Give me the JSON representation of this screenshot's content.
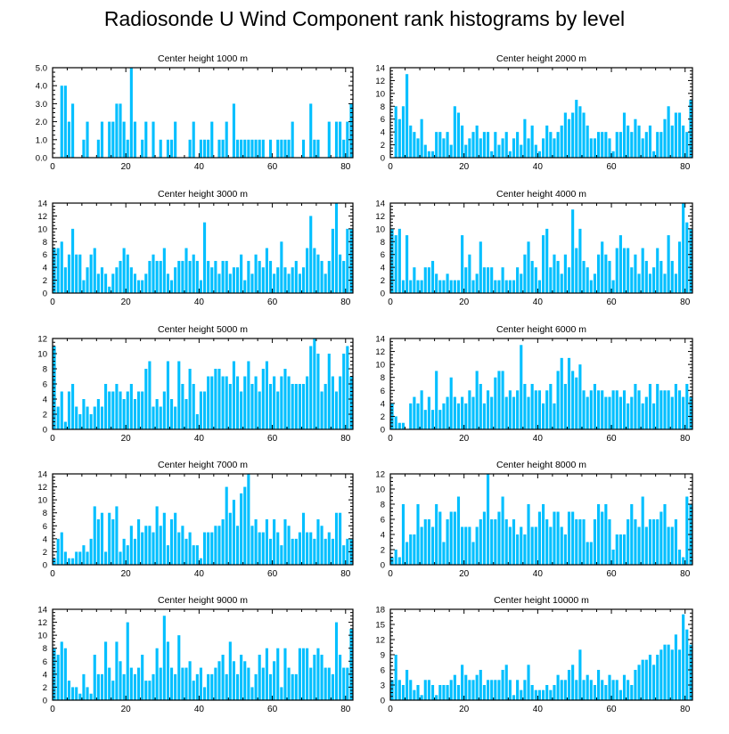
{
  "title": "Radiosonde U Wind Component rank histograms by level",
  "style": {
    "bar_color": "#00bfff",
    "axis_color": "#000000"
  },
  "chart_data": [
    {
      "type": "bar",
      "title": "Center height 1000 m",
      "xlim": [
        0,
        82
      ],
      "ylim": [
        0,
        5
      ],
      "xticks": [
        0,
        20,
        40,
        60,
        80
      ],
      "yticks": [
        0,
        1,
        2,
        3,
        4,
        5
      ],
      "ytick_labels": [
        "0.0",
        "1.0",
        "2.0",
        "3.0",
        "4.0",
        "5.0"
      ],
      "values": [
        0,
        0,
        4,
        4,
        2,
        3,
        0,
        0,
        1,
        2,
        0,
        0,
        1,
        2,
        0,
        2,
        2,
        3,
        3,
        2,
        1,
        5,
        2,
        0,
        1,
        2,
        0,
        2,
        0,
        1,
        0,
        1,
        1,
        2,
        0,
        0,
        0,
        1,
        2,
        0,
        1,
        1,
        1,
        2,
        0,
        1,
        1,
        2,
        0,
        3,
        1,
        1,
        1,
        1,
        1,
        1,
        1,
        1,
        0,
        1,
        0,
        1,
        1,
        1,
        1,
        2,
        0,
        0,
        1,
        0,
        3,
        1,
        1,
        0,
        0,
        2,
        0,
        2,
        2,
        1,
        2,
        3
      ]
    },
    {
      "type": "bar",
      "title": "Center height 2000 m",
      "xlim": [
        0,
        82
      ],
      "ylim": [
        0,
        14
      ],
      "xticks": [
        0,
        20,
        40,
        60,
        80
      ],
      "yticks": [
        0,
        2,
        4,
        6,
        8,
        10,
        12,
        14
      ],
      "values": [
        0,
        8,
        6,
        8,
        13,
        5,
        4,
        3,
        6,
        2,
        1,
        1,
        4,
        4,
        3,
        4,
        2,
        8,
        7,
        5,
        2,
        3,
        4,
        5,
        3,
        4,
        4,
        1,
        4,
        2,
        3,
        4,
        1,
        3,
        4,
        2,
        6,
        3,
        5,
        2,
        1,
        3,
        5,
        4,
        3,
        4,
        5,
        7,
        6,
        7,
        9,
        8,
        7,
        5,
        3,
        3,
        4,
        4,
        4,
        3,
        1,
        4,
        4,
        7,
        5,
        4,
        6,
        5,
        3,
        4,
        5,
        1,
        4,
        4,
        6,
        8,
        5,
        7,
        7,
        5,
        4,
        9
      ]
    },
    {
      "type": "bar",
      "title": "Center height 3000 m",
      "xlim": [
        0,
        82
      ],
      "ylim": [
        0,
        14
      ],
      "xticks": [
        0,
        20,
        40,
        60,
        80
      ],
      "yticks": [
        0,
        2,
        4,
        6,
        8,
        10,
        12,
        14
      ],
      "values": [
        7,
        7,
        8,
        4,
        6,
        10,
        6,
        6,
        2,
        4,
        6,
        7,
        3,
        4,
        3,
        1,
        3,
        4,
        5,
        7,
        6,
        4,
        3,
        2,
        2,
        3,
        5,
        6,
        5,
        5,
        7,
        3,
        2,
        4,
        5,
        5,
        7,
        5,
        6,
        5,
        2,
        11,
        5,
        4,
        5,
        3,
        5,
        5,
        3,
        4,
        4,
        6,
        2,
        5,
        3,
        6,
        5,
        4,
        7,
        5,
        3,
        4,
        8,
        4,
        3,
        4,
        5,
        3,
        4,
        7,
        12,
        7,
        6,
        5,
        3,
        5,
        10,
        14,
        6,
        5,
        10,
        10
      ]
    },
    {
      "type": "bar",
      "title": "Center height 4000 m",
      "xlim": [
        0,
        82
      ],
      "ylim": [
        0,
        14
      ],
      "xticks": [
        0,
        20,
        40,
        60,
        80
      ],
      "yticks": [
        0,
        2,
        4,
        6,
        8,
        10,
        12,
        14
      ],
      "values": [
        10,
        9,
        10,
        2,
        9,
        2,
        4,
        2,
        2,
        4,
        4,
        5,
        3,
        2,
        2,
        3,
        2,
        2,
        2,
        9,
        4,
        6,
        2,
        3,
        8,
        4,
        4,
        4,
        2,
        2,
        4,
        2,
        2,
        2,
        4,
        3,
        6,
        8,
        5,
        4,
        2,
        9,
        10,
        4,
        6,
        5,
        3,
        6,
        4,
        13,
        7,
        10,
        5,
        4,
        2,
        3,
        6,
        8,
        6,
        5,
        2,
        7,
        9,
        7,
        7,
        4,
        6,
        3,
        7,
        5,
        3,
        4,
        7,
        5,
        3,
        9,
        5,
        3,
        8,
        14,
        11,
        10
      ]
    },
    {
      "type": "bar",
      "title": "Center height 5000 m",
      "xlim": [
        0,
        82
      ],
      "ylim": [
        0,
        12
      ],
      "xticks": [
        0,
        20,
        40,
        60,
        80
      ],
      "yticks": [
        0,
        2,
        4,
        6,
        8,
        10,
        12
      ],
      "values": [
        11,
        3,
        5,
        1,
        5,
        6,
        3,
        2,
        4,
        3,
        2,
        3,
        4,
        3,
        6,
        5,
        5,
        6,
        5,
        4,
        5,
        6,
        4,
        5,
        5,
        8,
        9,
        3,
        4,
        3,
        5,
        9,
        4,
        3,
        9,
        6,
        4,
        8,
        6,
        2,
        5,
        5,
        7,
        7,
        8,
        8,
        7,
        7,
        6,
        9,
        7,
        5,
        7,
        9,
        6,
        7,
        5,
        8,
        9,
        6,
        7,
        5,
        7,
        8,
        7,
        6,
        6,
        6,
        6,
        7,
        11,
        12,
        10,
        5,
        6,
        10,
        7,
        5,
        7,
        10,
        11,
        7
      ]
    },
    {
      "type": "bar",
      "title": "Center height 6000 m",
      "xlim": [
        0,
        82
      ],
      "ylim": [
        0,
        14
      ],
      "xticks": [
        0,
        20,
        40,
        60,
        80
      ],
      "yticks": [
        0,
        2,
        4,
        6,
        8,
        10,
        12,
        14
      ],
      "values": [
        4,
        2,
        1,
        1,
        0,
        4,
        5,
        4,
        6,
        3,
        5,
        3,
        9,
        3,
        4,
        5,
        8,
        5,
        4,
        5,
        4,
        6,
        5,
        9,
        7,
        4,
        6,
        5,
        8,
        9,
        9,
        5,
        6,
        5,
        6,
        13,
        7,
        5,
        7,
        6,
        6,
        4,
        6,
        7,
        4,
        9,
        11,
        7,
        11,
        9,
        8,
        10,
        6,
        5,
        6,
        7,
        6,
        6,
        5,
        5,
        6,
        6,
        5,
        6,
        4,
        5,
        7,
        6,
        4,
        5,
        7,
        4,
        7,
        6,
        6,
        6,
        5,
        7,
        6,
        5,
        7,
        5
      ]
    },
    {
      "type": "bar",
      "title": "Center height 7000 m",
      "xlim": [
        0,
        82
      ],
      "ylim": [
        0,
        14
      ],
      "xticks": [
        0,
        20,
        40,
        60,
        80
      ],
      "yticks": [
        0,
        2,
        4,
        6,
        8,
        10,
        12,
        14
      ],
      "values": [
        1,
        4,
        5,
        2,
        1,
        1,
        2,
        2,
        3,
        2,
        4,
        9,
        7,
        8,
        2,
        8,
        7,
        9,
        2,
        4,
        3,
        6,
        4,
        7,
        5,
        6,
        6,
        5,
        9,
        6,
        8,
        3,
        7,
        8,
        5,
        6,
        4,
        5,
        3,
        3,
        1,
        5,
        5,
        5,
        6,
        6,
        7,
        12,
        8,
        10,
        6,
        11,
        12,
        14,
        6,
        7,
        5,
        5,
        7,
        4,
        7,
        5,
        3,
        7,
        6,
        4,
        4,
        5,
        8,
        5,
        5,
        4,
        7,
        6,
        4,
        5,
        4,
        8,
        8,
        3,
        4,
        4
      ]
    },
    {
      "type": "bar",
      "title": "Center height 8000 m",
      "xlim": [
        0,
        82
      ],
      "ylim": [
        0,
        12
      ],
      "xticks": [
        0,
        20,
        40,
        60,
        80
      ],
      "yticks": [
        0,
        2,
        4,
        6,
        8,
        10,
        12
      ],
      "values": [
        1,
        2,
        1,
        8,
        3,
        4,
        4,
        8,
        5,
        6,
        6,
        5,
        8,
        7,
        3,
        6,
        7,
        7,
        9,
        5,
        5,
        5,
        3,
        5,
        6,
        7,
        12,
        6,
        6,
        7,
        9,
        6,
        5,
        6,
        4,
        5,
        4,
        8,
        5,
        5,
        7,
        8,
        6,
        5,
        7,
        7,
        5,
        4,
        7,
        7,
        6,
        6,
        6,
        3,
        3,
        6,
        8,
        7,
        8,
        6,
        2,
        4,
        4,
        4,
        6,
        8,
        6,
        5,
        9,
        5,
        6,
        6,
        6,
        7,
        8,
        5,
        5,
        6,
        2,
        1,
        9,
        8
      ]
    },
    {
      "type": "bar",
      "title": "Center height 9000 m",
      "xlim": [
        0,
        82
      ],
      "ylim": [
        0,
        14
      ],
      "xticks": [
        0,
        20,
        40,
        60,
        80
      ],
      "yticks": [
        0,
        2,
        4,
        6,
        8,
        10,
        12,
        14
      ],
      "values": [
        8,
        7,
        9,
        8,
        3,
        2,
        2,
        1,
        4,
        2,
        1,
        7,
        4,
        4,
        9,
        5,
        3,
        9,
        6,
        4,
        12,
        5,
        4,
        5,
        7,
        3,
        3,
        4,
        8,
        5,
        13,
        9,
        5,
        4,
        10,
        5,
        5,
        6,
        3,
        4,
        5,
        2,
        4,
        4,
        5,
        6,
        7,
        4,
        9,
        6,
        4,
        7,
        6,
        5,
        2,
        4,
        7,
        5,
        8,
        4,
        6,
        8,
        2,
        8,
        5,
        4,
        4,
        8,
        8,
        8,
        5,
        7,
        8,
        7,
        5,
        5,
        4,
        12,
        7,
        5,
        5,
        11
      ]
    },
    {
      "type": "bar",
      "title": "Center height 10000 m",
      "xlim": [
        0,
        82
      ],
      "ylim": [
        0,
        18
      ],
      "xticks": [
        0,
        20,
        40,
        60,
        80
      ],
      "yticks": [
        0,
        3,
        6,
        9,
        12,
        15,
        18
      ],
      "values": [
        4,
        9,
        4,
        3,
        6,
        4,
        2,
        3,
        1,
        4,
        4,
        3,
        1,
        3,
        3,
        3,
        4,
        5,
        3,
        7,
        5,
        4,
        4,
        5,
        6,
        3,
        4,
        4,
        4,
        4,
        6,
        7,
        4,
        1,
        4,
        2,
        4,
        7,
        3,
        2,
        2,
        2,
        3,
        2,
        3,
        5,
        4,
        4,
        6,
        7,
        4,
        10,
        4,
        5,
        4,
        3,
        6,
        4,
        3,
        5,
        4,
        4,
        2,
        5,
        4,
        3,
        6,
        7,
        8,
        8,
        9,
        7,
        9,
        10,
        11,
        11,
        10,
        13,
        10,
        17,
        14,
        11
      ]
    }
  ]
}
